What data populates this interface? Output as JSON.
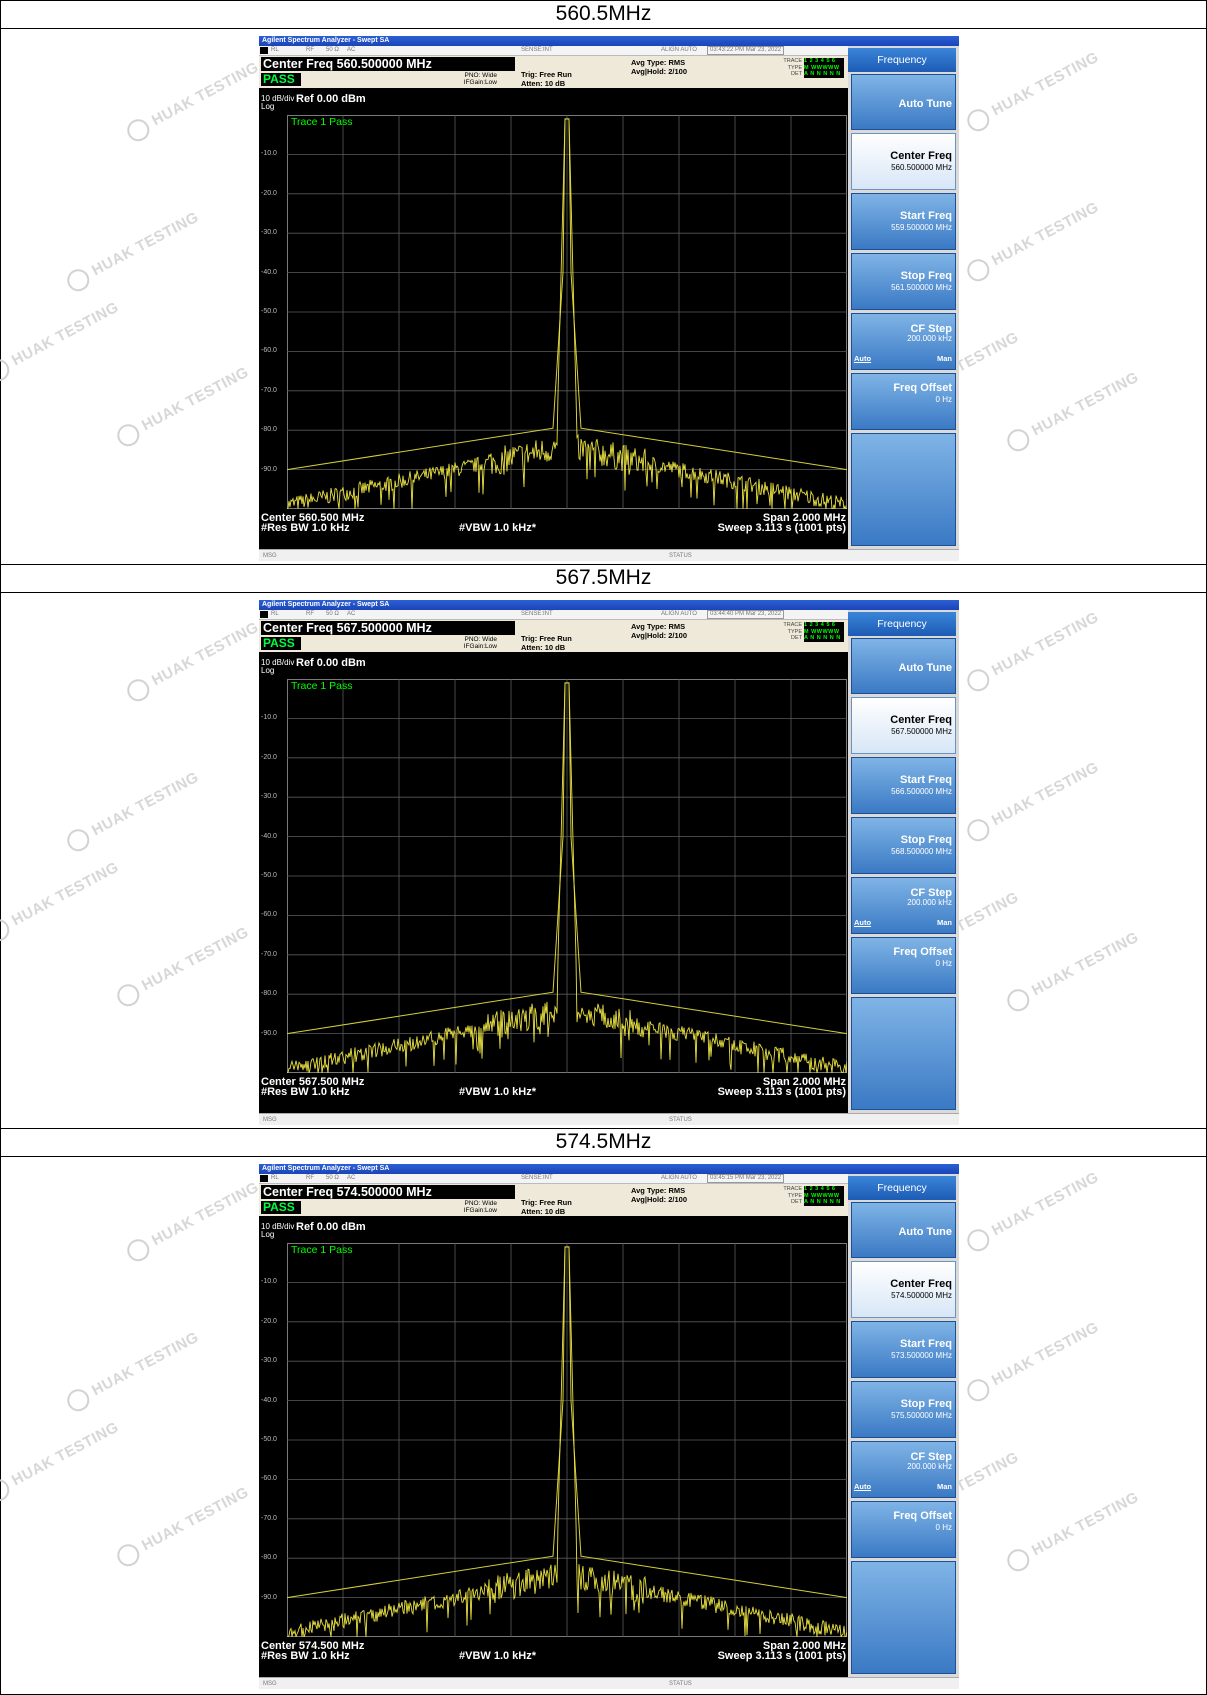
{
  "watermark_text": "HUAK TESTING",
  "panels": [
    {
      "label": "560.5MHz",
      "window_title": "Agilent Spectrum Analyzer - Swept SA",
      "status": {
        "rl": "RL",
        "rf": "RF",
        "ohm": "50 Ω",
        "ac": "AC",
        "sense": "SENSE:INT",
        "align": "ALIGN AUTO",
        "datetime": "03:43:22 PM Mar 23, 2022"
      },
      "center_freq_header": "Center Freq 560.500000 MHz",
      "pass_badge": "PASS",
      "pno_line": "PNO: Wide",
      "ifgain_line": "IFGain:Low",
      "trig": "Trig: Free Run",
      "atten": "Atten: 10 dB",
      "avg_type": "Avg Type: RMS",
      "avg_hold": "Avg|Hold: 2/100",
      "trace_row": {
        "label": "TRACE",
        "value": "1 2 3 4 5 6"
      },
      "type_row": {
        "label": "TYPE",
        "value": "M WWWWW"
      },
      "det_row": {
        "label": "DET",
        "value": "A N N N N N"
      },
      "ref_scale": "10 dB/div",
      "ref_log": "Log",
      "ref_level": "Ref 0.00 dBm",
      "trace_status": "Trace 1 Pass",
      "center_footer": "Center 560.500 MHz",
      "res_bw": "#Res BW 1.0 kHz",
      "vbw": "#VBW 1.0 kHz*",
      "span": "Span 2.000 MHz",
      "sweep": "Sweep  3.113 s (1001 pts)",
      "msg": "MSG",
      "status_label": "STATUS",
      "softkeys": {
        "header": "Frequency",
        "auto_tune": "Auto Tune",
        "center_freq": {
          "label": "Center Freq",
          "value": "560.500000 MHz"
        },
        "start_freq": {
          "label": "Start Freq",
          "value": "559.500000 MHz"
        },
        "stop_freq": {
          "label": "Stop Freq",
          "value": "561.500000 MHz"
        },
        "cf_step": {
          "label": "CF Step",
          "value": "200.000 kHz",
          "auto": "Auto",
          "man": "Man"
        },
        "freq_offset": {
          "label": "Freq Offset",
          "value": "0 Hz"
        }
      },
      "chart_data": {
        "type": "line",
        "y_tick_labels": [
          "-10.0",
          "-20.0",
          "-30.0",
          "-40.0",
          "-50.0",
          "-60.0",
          "-70.0",
          "-80.0",
          "-90.0"
        ],
        "ylim": [
          -100,
          0
        ],
        "xlim_mhz": [
          559.5,
          561.5
        ],
        "grid": true,
        "series": [
          {
            "peak_dbm": -1.0,
            "center_mhz": 560.5,
            "noise_floor_dbm": -99
          }
        ]
      }
    },
    {
      "label": "567.5MHz",
      "window_title": "Agilent Spectrum Analyzer - Swept SA",
      "status": {
        "rl": "RL",
        "rf": "RF",
        "ohm": "50 Ω",
        "ac": "AC",
        "sense": "SENSE:INT",
        "align": "ALIGN AUTO",
        "datetime": "03:44:40 PM Mar 23, 2022"
      },
      "center_freq_header": "Center Freq 567.500000 MHz",
      "pass_badge": "PASS",
      "pno_line": "PNO: Wide",
      "ifgain_line": "IFGain:Low",
      "trig": "Trig: Free Run",
      "atten": "Atten: 10 dB",
      "avg_type": "Avg Type: RMS",
      "avg_hold": "Avg|Hold: 2/100",
      "trace_row": {
        "label": "TRACE",
        "value": "1 2 3 4 5 6"
      },
      "type_row": {
        "label": "TYPE",
        "value": "M WWWWW"
      },
      "det_row": {
        "label": "DET",
        "value": "A N N N N N"
      },
      "ref_scale": "10 dB/div",
      "ref_log": "Log",
      "ref_level": "Ref 0.00 dBm",
      "trace_status": "Trace 1 Pass",
      "center_footer": "Center 567.500 MHz",
      "res_bw": "#Res BW 1.0 kHz",
      "vbw": "#VBW 1.0 kHz*",
      "span": "Span 2.000 MHz",
      "sweep": "Sweep  3.113 s (1001 pts)",
      "msg": "MSG",
      "status_label": "STATUS",
      "softkeys": {
        "header": "Frequency",
        "auto_tune": "Auto Tune",
        "center_freq": {
          "label": "Center Freq",
          "value": "567.500000 MHz"
        },
        "start_freq": {
          "label": "Start Freq",
          "value": "566.500000 MHz"
        },
        "stop_freq": {
          "label": "Stop Freq",
          "value": "568.500000 MHz"
        },
        "cf_step": {
          "label": "CF Step",
          "value": "200.000 kHz",
          "auto": "Auto",
          "man": "Man"
        },
        "freq_offset": {
          "label": "Freq Offset",
          "value": "0 Hz"
        }
      },
      "chart_data": {
        "type": "line",
        "y_tick_labels": [
          "-10.0",
          "-20.0",
          "-30.0",
          "-40.0",
          "-50.0",
          "-60.0",
          "-70.0",
          "-80.0",
          "-90.0"
        ],
        "ylim": [
          -100,
          0
        ],
        "xlim_mhz": [
          566.5,
          568.5
        ],
        "grid": true,
        "series": [
          {
            "peak_dbm": -1.0,
            "center_mhz": 567.5,
            "noise_floor_dbm": -99
          }
        ]
      }
    },
    {
      "label": "574.5MHz",
      "window_title": "Agilent Spectrum Analyzer - Swept SA",
      "status": {
        "rl": "RL",
        "rf": "RF",
        "ohm": "50 Ω",
        "ac": "AC",
        "sense": "SENSE:INT",
        "align": "ALIGN AUTO",
        "datetime": "03:45:15 PM Mar 23, 2022"
      },
      "center_freq_header": "Center Freq 574.500000 MHz",
      "pass_badge": "PASS",
      "pno_line": "PNO: Wide",
      "ifgain_line": "IFGain:Low",
      "trig": "Trig: Free Run",
      "atten": "Atten: 10 dB",
      "avg_type": "Avg Type: RMS",
      "avg_hold": "Avg|Hold: 2/100",
      "trace_row": {
        "label": "TRACE",
        "value": "1 2 3 4 5 6"
      },
      "type_row": {
        "label": "TYPE",
        "value": "M WWWWW"
      },
      "det_row": {
        "label": "DET",
        "value": "A N N N N N"
      },
      "ref_scale": "10 dB/div",
      "ref_log": "Log",
      "ref_level": "Ref 0.00 dBm",
      "trace_status": "Trace 1 Pass",
      "center_footer": "Center 574.500 MHz",
      "res_bw": "#Res BW 1.0 kHz",
      "vbw": "#VBW 1.0 kHz*",
      "span": "Span 2.000 MHz",
      "sweep": "Sweep  3.113 s (1001 pts)",
      "msg": "MSG",
      "status_label": "STATUS",
      "softkeys": {
        "header": "Frequency",
        "auto_tune": "Auto Tune",
        "center_freq": {
          "label": "Center Freq",
          "value": "574.500000 MHz"
        },
        "start_freq": {
          "label": "Start Freq",
          "value": "573.500000 MHz"
        },
        "stop_freq": {
          "label": "Stop Freq",
          "value": "575.500000 MHz"
        },
        "cf_step": {
          "label": "CF Step",
          "value": "200.000 kHz",
          "auto": "Auto",
          "man": "Man"
        },
        "freq_offset": {
          "label": "Freq Offset",
          "value": "0 Hz"
        }
      },
      "chart_data": {
        "type": "line",
        "y_tick_labels": [
          "-10.0",
          "-20.0",
          "-30.0",
          "-40.0",
          "-50.0",
          "-60.0",
          "-70.0",
          "-80.0",
          "-90.0"
        ],
        "ylim": [
          -100,
          0
        ],
        "xlim_mhz": [
          573.5,
          575.5
        ],
        "grid": true,
        "series": [
          {
            "peak_dbm": -1.0,
            "center_mhz": 574.5,
            "noise_floor_dbm": -99
          }
        ]
      }
    }
  ]
}
